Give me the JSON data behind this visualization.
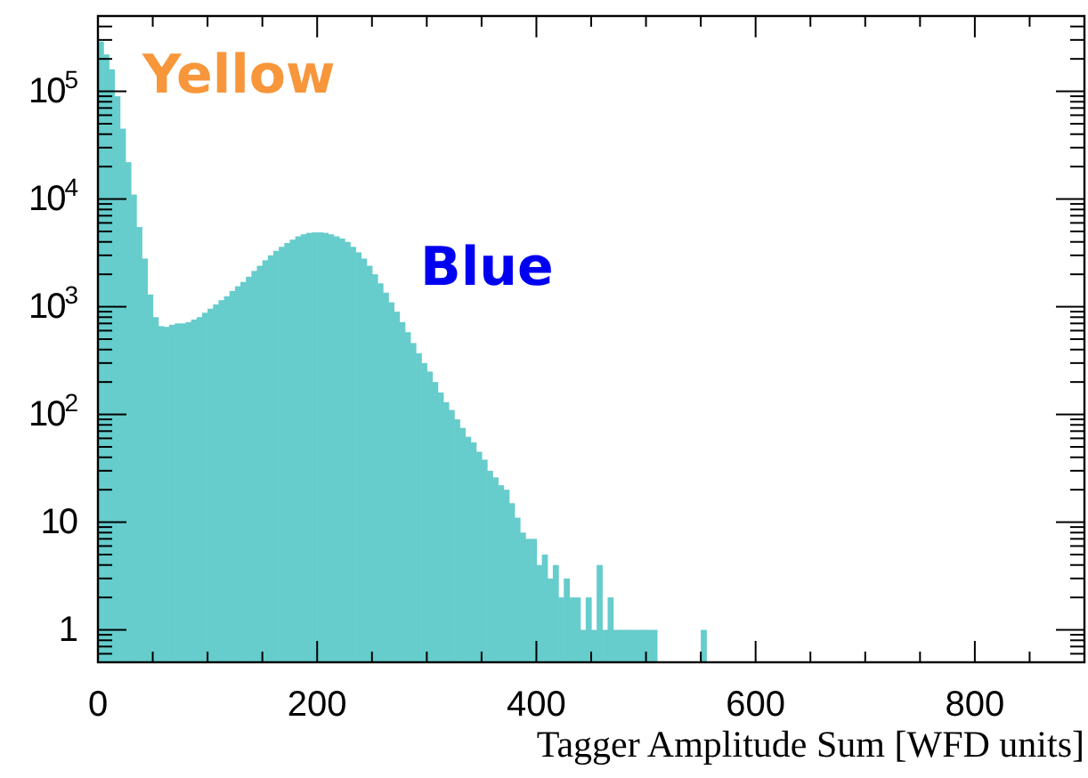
{
  "chart_data": {
    "type": "histogram",
    "xlabel": "Tagger Amplitude Sum [WFD units]",
    "color": "#66cccc",
    "log": "y",
    "grid": false,
    "bins": [
      0,
      5,
      10,
      15,
      20,
      25,
      30,
      35,
      40,
      45,
      50,
      55,
      60,
      65,
      70,
      75,
      80,
      85,
      90,
      95,
      100,
      105,
      110,
      115,
      120,
      125,
      130,
      135,
      140,
      145,
      150,
      155,
      160,
      165,
      170,
      175,
      180,
      185,
      190,
      195,
      200,
      205,
      210,
      215,
      220,
      225,
      230,
      235,
      240,
      245,
      250,
      255,
      260,
      265,
      270,
      275,
      280,
      285,
      290,
      295,
      300,
      305,
      310,
      315,
      320,
      325,
      330,
      335,
      340,
      345,
      350,
      355,
      360,
      365,
      370,
      375,
      380,
      385,
      390,
      395,
      400,
      405,
      410,
      415,
      420,
      425,
      430,
      435,
      440,
      445,
      450,
      455,
      460,
      465,
      470,
      475,
      480,
      485,
      490,
      495,
      500,
      505,
      510,
      550,
      555
    ],
    "values": [
      290000,
      220000,
      160000,
      90000,
      45000,
      22000,
      11000,
      5500,
      2800,
      1300,
      800,
      660,
      650,
      680,
      700,
      700,
      720,
      760,
      800,
      880,
      960,
      1050,
      1150,
      1250,
      1400,
      1550,
      1700,
      1900,
      2150,
      2400,
      2700,
      3000,
      3300,
      3600,
      3900,
      4200,
      4500,
      4700,
      4850,
      4900,
      4900,
      4850,
      4700,
      4500,
      4300,
      4000,
      3600,
      3200,
      2800,
      2400,
      2000,
      1650,
      1350,
      1100,
      900,
      720,
      580,
      460,
      370,
      300,
      250,
      200,
      160,
      130,
      110,
      90,
      75,
      62,
      55,
      45,
      38,
      30,
      26,
      22,
      20,
      15,
      11,
      8,
      7,
      7,
      4,
      5,
      3,
      4,
      2,
      3,
      2,
      2,
      1,
      2,
      1,
      4,
      1,
      2,
      1,
      1,
      1,
      1,
      1,
      1,
      1,
      1,
      null,
      1
    ],
    "xlim": [
      0,
      900
    ],
    "ylim": [
      0.5,
      500000
    ],
    "xticks": [
      0,
      200,
      400,
      600,
      800
    ],
    "yticks": [
      1,
      10,
      {
        "value": 100,
        "label": "10$^{2}$"
      },
      {
        "value": 1000,
        "label": "10$^{3}$"
      },
      {
        "value": 10000,
        "label": "10$^{4}$"
      },
      {
        "value": 100000,
        "label": "10$^{5}$"
      }
    ],
    "annotations": [
      "Yellow",
      "Blue"
    ]
  }
}
